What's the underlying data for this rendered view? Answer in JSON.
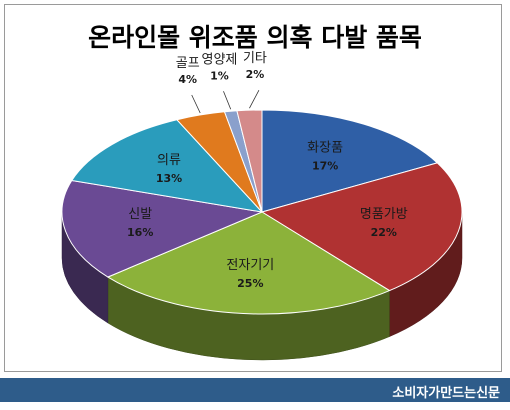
{
  "chart_data": {
    "type": "pie",
    "title": "온라인몰 위조품 의혹 다발 품목",
    "categories": [
      "화장품",
      "명품가방",
      "전자기기",
      "신발",
      "의류",
      "골프",
      "영양제",
      "기타"
    ],
    "values": [
      17,
      22,
      25,
      16,
      13,
      4,
      1,
      2
    ],
    "value_labels": [
      "17%",
      "22%",
      "25%",
      "16%",
      "13%",
      "4%",
      "1%",
      "2%"
    ],
    "colors": [
      "#2f5fa6",
      "#b03232",
      "#8cb23a",
      "#6a4a94",
      "#2a9cbc",
      "#e07a1e",
      "#8aa0cc",
      "#d48a8a"
    ],
    "legend": "none",
    "start": "12 o'clock, clockwise",
    "style": "3d"
  },
  "footer": {
    "source": "소비자가만드는신문"
  }
}
